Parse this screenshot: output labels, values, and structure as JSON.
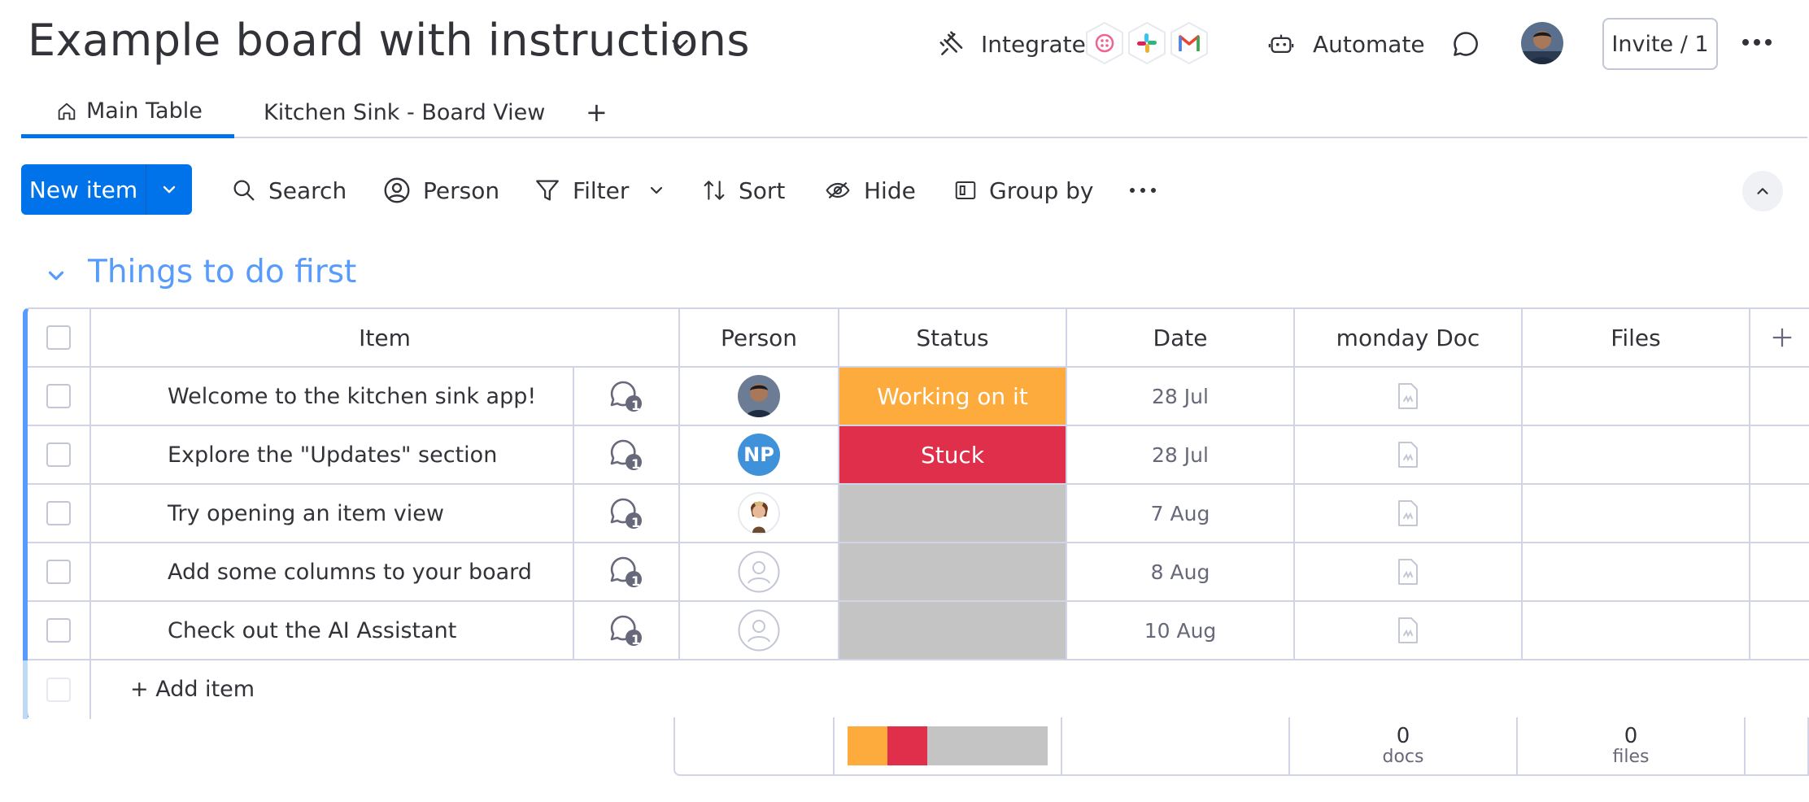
{
  "header": {
    "board_title": "Example board with instructions",
    "integrate_label": "Integrate",
    "automate_label": "Automate",
    "invite_label": "Invite / 1"
  },
  "tabs": [
    {
      "label": "Main Table",
      "active": true
    },
    {
      "label": "Kitchen Sink - Board View",
      "active": false
    },
    {
      "label": "+"
    }
  ],
  "toolbar": {
    "new_item_label": "New item",
    "search_label": "Search",
    "person_label": "Person",
    "filter_label": "Filter",
    "sort_label": "Sort",
    "hide_label": "Hide",
    "group_by_label": "Group by"
  },
  "group": {
    "title": "Things to do first",
    "color": "#579bfc",
    "columns": {
      "item": "Item",
      "person": "Person",
      "status": "Status",
      "date": "Date",
      "doc": "monday Doc",
      "files": "Files"
    },
    "rows": [
      {
        "name": "Welcome to the kitchen sink app!",
        "updates": "1",
        "person": "photo",
        "status": "Working on it",
        "status_color": "#fdab3d",
        "date": "28 Jul"
      },
      {
        "name": "Explore the \"Updates\" section",
        "updates": "1",
        "person": "NP",
        "status": "Stuck",
        "status_color": "#df2f4a",
        "date": "28 Jul"
      },
      {
        "name": "Try opening an item view",
        "updates": "1",
        "person": "portrait",
        "status": "",
        "status_color": "#c4c4c4",
        "date": "7 Aug"
      },
      {
        "name": "Add some columns to your board",
        "updates": "1",
        "person": "empty",
        "status": "",
        "status_color": "#c4c4c4",
        "date": "8 Aug"
      },
      {
        "name": "Check out the AI Assistant",
        "updates": "1",
        "person": "empty",
        "status": "",
        "status_color": "#c4c4c4",
        "date": "10 Aug"
      }
    ],
    "add_item_label": "+ Add item",
    "summary": {
      "status_distribution": [
        {
          "label": "Working on it",
          "fraction": 0.2,
          "color": "#fdab3d"
        },
        {
          "label": "Stuck",
          "fraction": 0.2,
          "color": "#df2f4a"
        },
        {
          "label": "",
          "fraction": 0.6,
          "color": "#c4c4c4"
        }
      ],
      "docs_count": "0",
      "docs_label": "docs",
      "files_count": "0",
      "files_label": "files"
    }
  }
}
